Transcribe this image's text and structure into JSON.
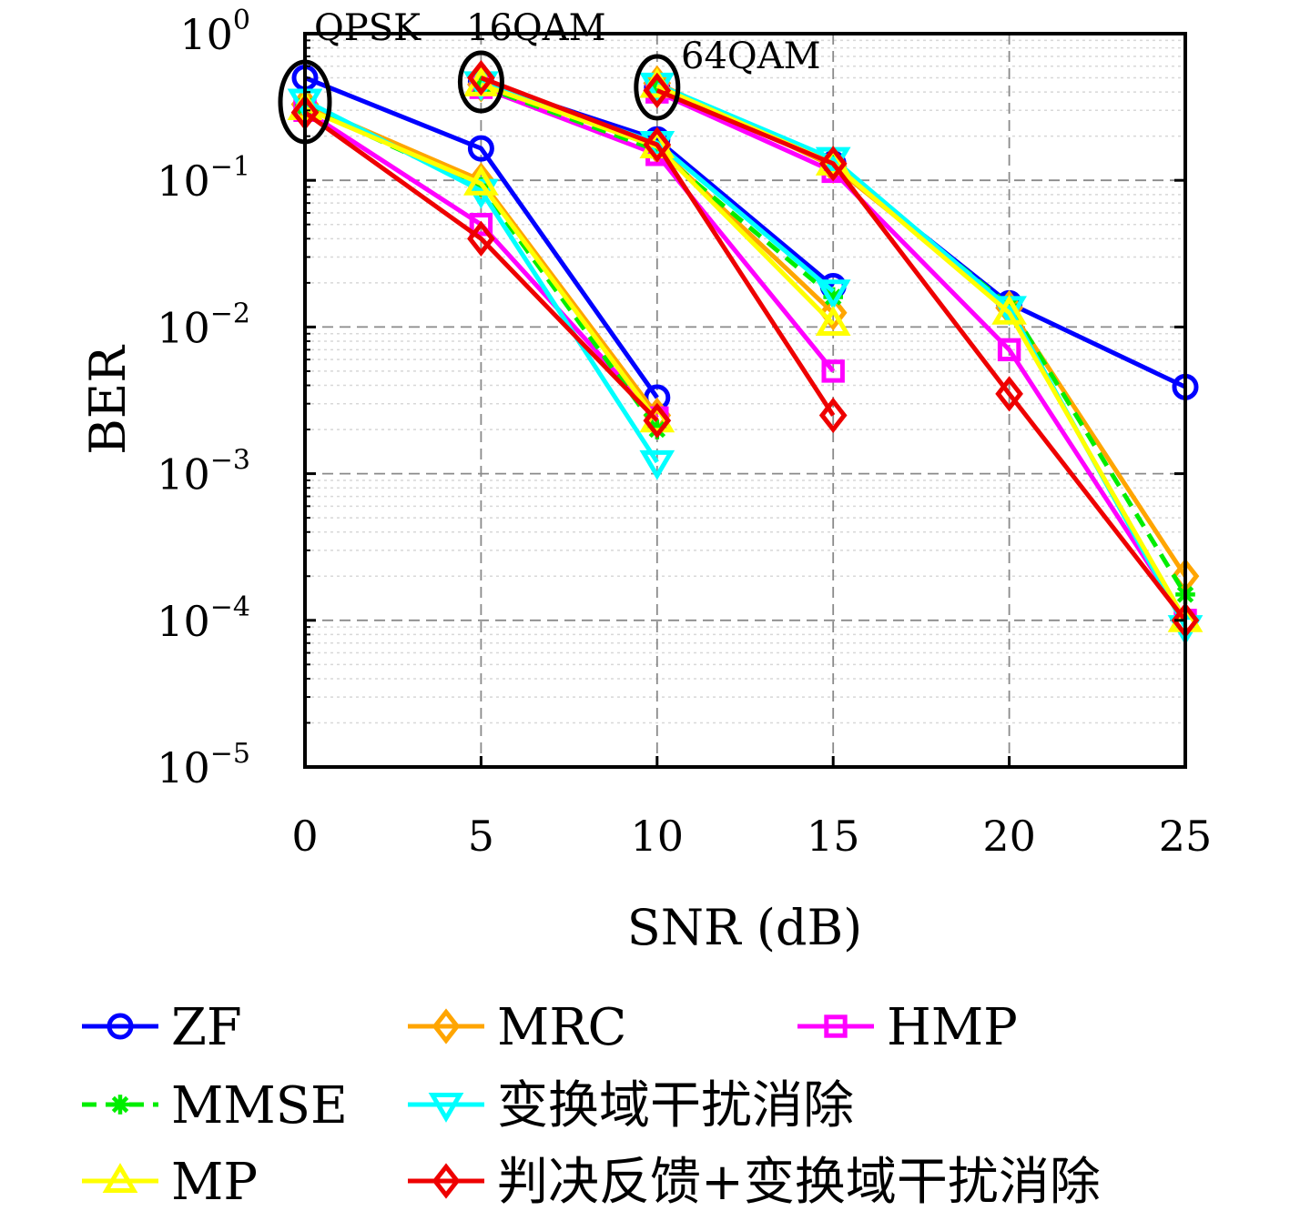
{
  "chart_data": {
    "type": "line",
    "title": "",
    "xlabel": "SNR (dB)",
    "ylabel": "BER",
    "yscale": "log",
    "xlim": [
      0,
      25
    ],
    "ylim": [
      1e-05,
      1
    ],
    "grid": true,
    "legend_position": "bottom",
    "x_ticks": [
      "0",
      "5",
      "10",
      "15",
      "20",
      "25"
    ],
    "y_ticks": [
      {
        "base": "10",
        "exp": "0"
      },
      {
        "base": "10",
        "exp": "−1"
      },
      {
        "base": "10",
        "exp": "−2"
      },
      {
        "base": "10",
        "exp": "−3"
      },
      {
        "base": "10",
        "exp": "−4"
      },
      {
        "base": "10",
        "exp": "−5"
      }
    ],
    "annotations": [
      {
        "text": "QPSK",
        "x": 0
      },
      {
        "text": "16QAM",
        "x": 5
      },
      {
        "text": "64QAM",
        "x": 10
      }
    ],
    "series": [
      {
        "name": "ZF",
        "color": "#0000ff",
        "marker": "circle",
        "dash": false,
        "groups": [
          {
            "x": [
              0,
              5,
              10
            ],
            "y": [
              0.5,
              0.165,
              0.0033
            ]
          },
          {
            "x": [
              5,
              10,
              15
            ],
            "y": [
              0.47,
              0.19,
              0.019
            ]
          },
          {
            "x": [
              10,
              15,
              20,
              25
            ],
            "y": [
              0.43,
              0.13,
              0.0145,
              0.0039
            ]
          }
        ]
      },
      {
        "name": "MRC",
        "color": "#ffa500",
        "marker": "diamond",
        "dash": false,
        "groups": [
          {
            "x": [
              0,
              5,
              10
            ],
            "y": [
              0.33,
              0.1,
              0.0025
            ]
          },
          {
            "x": [
              5,
              10,
              15
            ],
            "y": [
              0.45,
              0.17,
              0.0125
            ]
          },
          {
            "x": [
              10,
              15,
              20,
              25
            ],
            "y": [
              0.46,
              0.125,
              0.0135,
              0.0002
            ]
          }
        ]
      },
      {
        "name": "HMP",
        "color": "#ff00ff",
        "marker": "square",
        "dash": false,
        "groups": [
          {
            "x": [
              0,
              5,
              10
            ],
            "y": [
              0.3,
              0.05,
              0.0024
            ]
          },
          {
            "x": [
              5,
              10,
              15
            ],
            "y": [
              0.43,
              0.15,
              0.005
            ]
          },
          {
            "x": [
              10,
              15,
              20,
              25
            ],
            "y": [
              0.4,
              0.115,
              0.007,
              0.0001
            ]
          }
        ]
      },
      {
        "name": "MMSE",
        "color": "#00ee00",
        "marker": "asterisk",
        "dash": true,
        "groups": [
          {
            "x": [
              0,
              5,
              10
            ],
            "y": [
              0.32,
              0.09,
              0.002
            ]
          },
          {
            "x": [
              5,
              10,
              15
            ],
            "y": [
              0.44,
              0.16,
              0.016
            ]
          },
          {
            "x": [
              10,
              15,
              20,
              25
            ],
            "y": [
              0.44,
              0.13,
              0.014,
              0.00015
            ]
          }
        ]
      },
      {
        "name": "变换域干扰消除",
        "color": "#00ffff",
        "marker": "triangle-down",
        "dash": false,
        "groups": [
          {
            "x": [
              0,
              5,
              10
            ],
            "y": [
              0.35,
              0.085,
              0.0012
            ]
          },
          {
            "x": [
              5,
              10,
              15
            ],
            "y": [
              0.46,
              0.18,
              0.0175
            ]
          },
          {
            "x": [
              10,
              15,
              20,
              25
            ],
            "y": [
              0.45,
              0.14,
              0.0135,
              9e-05
            ]
          }
        ]
      },
      {
        "name": "MP",
        "color": "#ffff00",
        "marker": "triangle-up",
        "dash": false,
        "groups": [
          {
            "x": [
              0,
              5,
              10
            ],
            "y": [
              0.31,
              0.095,
              0.0023
            ]
          },
          {
            "x": [
              5,
              10,
              15
            ],
            "y": [
              0.45,
              0.17,
              0.0105
            ]
          },
          {
            "x": [
              10,
              15,
              20,
              25
            ],
            "y": [
              0.44,
              0.13,
              0.0125,
              0.0001
            ]
          }
        ]
      },
      {
        "name": "判决反馈+变换域干扰消除",
        "color": "#ee0000",
        "marker": "diamond",
        "dash": false,
        "groups": [
          {
            "x": [
              0,
              5,
              10
            ],
            "y": [
              0.29,
              0.04,
              0.0023
            ]
          },
          {
            "x": [
              5,
              10,
              15
            ],
            "y": [
              0.5,
              0.175,
              0.0025
            ]
          },
          {
            "x": [
              10,
              15,
              20,
              25
            ],
            "y": [
              0.41,
              0.13,
              0.0035,
              0.0001
            ]
          }
        ]
      }
    ],
    "legend_order": [
      0,
      1,
      2,
      3,
      4,
      5,
      6
    ]
  }
}
